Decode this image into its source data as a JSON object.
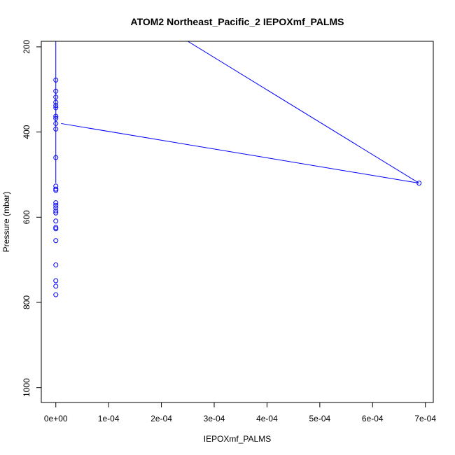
{
  "chart_data": {
    "type": "scatter",
    "title": "ATOM2 Northeast_Pacific_2 IEPOXmf_PALMS",
    "xlabel": "IEPOXmf_PALMS",
    "ylabel": "Pressure (mbar)",
    "xlim": [
      -2.75e-05,
      0.000715
    ],
    "ylim": [
      1035,
      187
    ],
    "y_reversed": true,
    "grid": false,
    "color": "#0000ff",
    "x_ticks": [
      0,
      0.0001,
      0.0002,
      0.0003,
      0.0004,
      0.0005,
      0.0006,
      0.0007
    ],
    "x_tick_labels": [
      "0e+00",
      "1e-04",
      "2e-04",
      "3e-04",
      "4e-04",
      "5e-04",
      "6e-04",
      "7e-04"
    ],
    "y_ticks": [
      200,
      400,
      600,
      800,
      1000
    ],
    "y_tick_labels": [
      "200",
      "400",
      "600",
      "800",
      "1000"
    ],
    "points": [
      {
        "x": 0.0,
        "y": 278
      },
      {
        "x": 0.0,
        "y": 304
      },
      {
        "x": 0.0,
        "y": 318
      },
      {
        "x": 0.0,
        "y": 330
      },
      {
        "x": 0.0,
        "y": 338
      },
      {
        "x": 0.0,
        "y": 343
      },
      {
        "x": 0.0,
        "y": 363
      },
      {
        "x": 0.0,
        "y": 368
      },
      {
        "x": 0.0,
        "y": 380
      },
      {
        "x": 0.0,
        "y": 393
      },
      {
        "x": 0.0,
        "y": 460
      },
      {
        "x": 0.0,
        "y": 527
      },
      {
        "x": 0.0,
        "y": 534
      },
      {
        "x": 0.0,
        "y": 537
      },
      {
        "x": 0.0,
        "y": 566
      },
      {
        "x": 0.0,
        "y": 572
      },
      {
        "x": 0.0,
        "y": 578
      },
      {
        "x": 0.0,
        "y": 585
      },
      {
        "x": 0.0,
        "y": 590
      },
      {
        "x": 0.0,
        "y": 609
      },
      {
        "x": 0.0,
        "y": 624
      },
      {
        "x": 0.0,
        "y": 627
      },
      {
        "x": 0.0,
        "y": 655
      },
      {
        "x": 0.0,
        "y": 712
      },
      {
        "x": 0.0,
        "y": 749
      },
      {
        "x": 0.0,
        "y": 762
      },
      {
        "x": 0.0,
        "y": 782
      },
      {
        "x": 0.000688,
        "y": 520
      }
    ],
    "lines": [
      [
        {
          "x": 0.0,
          "y": 187
        },
        {
          "x": 0.0,
          "y": 520
        }
      ],
      [
        {
          "x": 1e-05,
          "y": 380
        },
        {
          "x": 0.000688,
          "y": 520
        }
      ],
      [
        {
          "x": 0.00025,
          "y": 187
        },
        {
          "x": 0.000688,
          "y": 520
        }
      ]
    ]
  }
}
